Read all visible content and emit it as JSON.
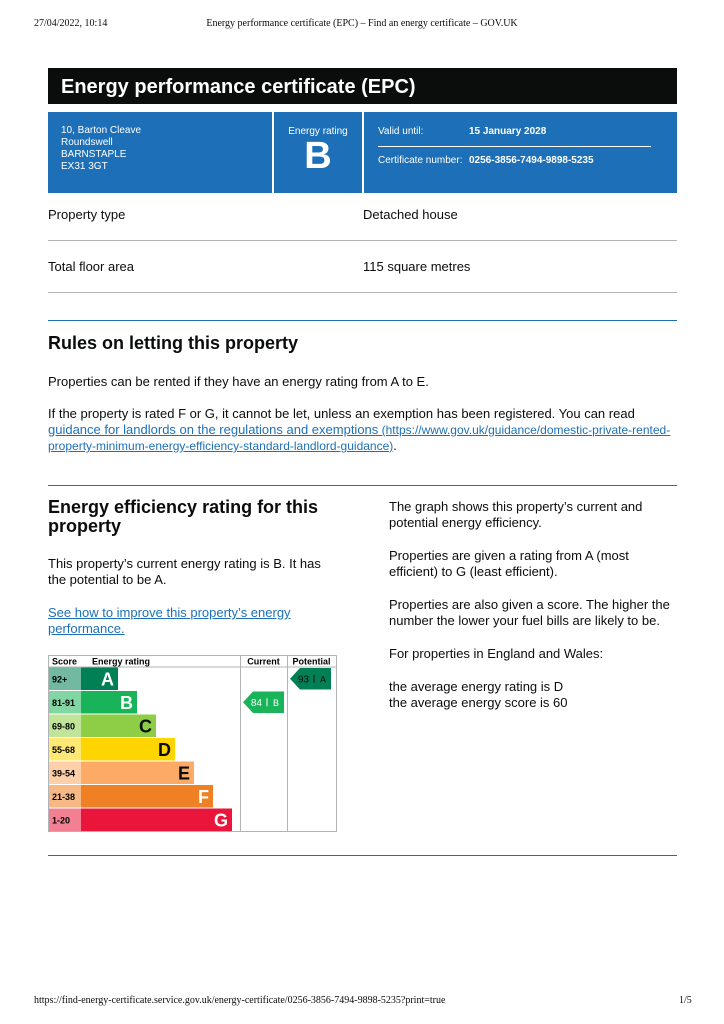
{
  "print_header": {
    "date": "27/04/2022, 10:14",
    "title": "Energy performance certificate (EPC) – Find an energy certificate – GOV.UK"
  },
  "header": {
    "title": "Energy performance certificate (EPC)"
  },
  "summary": {
    "address": [
      "10, Barton Cleave",
      "Roundswell",
      "BARNSTAPLE",
      "EX31 3GT"
    ],
    "rating_label": "Energy rating",
    "rating": "B",
    "valid_until_label": "Valid until:",
    "valid_until": "15 January 2028",
    "certificate_number_label": "Certificate number:",
    "certificate_number": "0256-3856-7494-9898-5235"
  },
  "property": {
    "rows": [
      [
        "Property type",
        "Detached house"
      ],
      [
        "Total floor area",
        "115 square metres"
      ]
    ]
  },
  "letting": {
    "title": "Rules on letting this property",
    "paragraph1": "Properties can be rented if they have an energy rating from A to E.",
    "paragraph2": {
      "before": "If the property is rated F or G, it cannot be let, unless an exemption has been registered. You can read ",
      "link_text": "guidance for landlords on the regulations and exemptions",
      "link_url": " (https://www.gov.uk/guidance/domestic-private-rented-property-minimum-energy-efficiency-standard-landlord-guidance)",
      "after": "."
    }
  },
  "efficiency": {
    "title": "Energy efficiency rating for this property",
    "paragraph": "This property’s current energy rating is B. It has the potential to be A.",
    "link": "See how to improve this property’s energy performance.",
    "right": [
      "The graph shows this property’s current and potential energy efficiency.",
      "Properties are given a rating from A (most efficient) to G (least efficient).",
      "Properties are also given a score. The higher the number the lower your fuel bills are likely to be.",
      "For properties in England and Wales:"
    ],
    "averages": [
      "the average energy rating is D",
      "the average energy score is 60"
    ]
  },
  "rating_chart": {
    "headers": [
      "Score",
      "Energy rating",
      "Current",
      "Potential"
    ],
    "bands": [
      {
        "score": "92+",
        "letter": "A",
        "color": "#008054"
      },
      {
        "score": "81-91",
        "letter": "B",
        "color": "#19b459"
      },
      {
        "score": "69-80",
        "letter": "C",
        "color": "#8dce46"
      },
      {
        "score": "55-68",
        "letter": "D",
        "color": "#ffd500"
      },
      {
        "score": "39-54",
        "letter": "E",
        "color": "#fcaa65"
      },
      {
        "score": "21-38",
        "letter": "F",
        "color": "#ef8023"
      },
      {
        "score": "1-20",
        "letter": "G",
        "color": "#e9153b"
      }
    ],
    "current": {
      "score": 84,
      "letter": "B",
      "color": "#19b459"
    },
    "potential": {
      "score": 93,
      "letter": "A",
      "color": "#008054"
    }
  },
  "footer": {
    "url": "https://find-energy-certificate.service.gov.uk/energy-certificate/0256-3856-7494-9898-5235?print=true",
    "page": "1/5"
  }
}
